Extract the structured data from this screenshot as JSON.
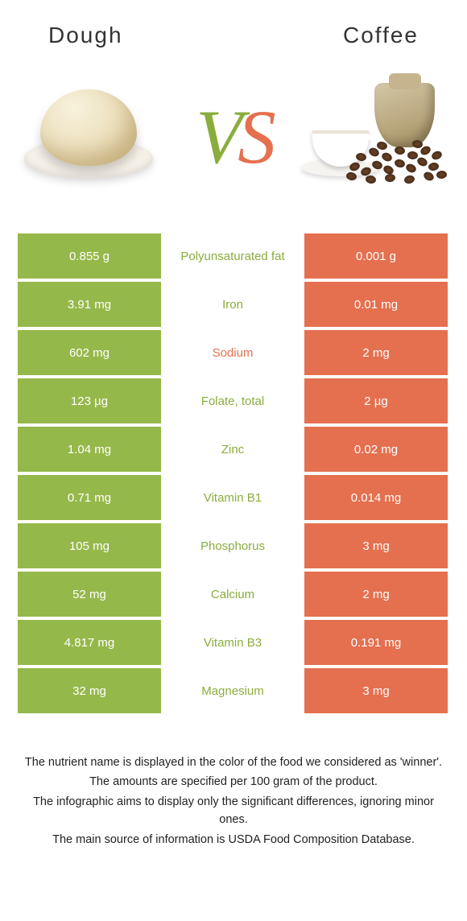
{
  "colors": {
    "left_bg": "#95b84a",
    "right_bg": "#e4704f",
    "left_text": "#8aad3e",
    "right_text": "#e4704f",
    "white": "#ffffff"
  },
  "header": {
    "left_title": "Dough",
    "right_title": "Coffee"
  },
  "vs": {
    "v": "V",
    "s": "S"
  },
  "rows": [
    {
      "left": "0.855 g",
      "label": "Polyunsaturated fat",
      "right": "0.001 g",
      "winner": "left"
    },
    {
      "left": "3.91 mg",
      "label": "Iron",
      "right": "0.01 mg",
      "winner": "left"
    },
    {
      "left": "602 mg",
      "label": "Sodium",
      "right": "2 mg",
      "winner": "right"
    },
    {
      "left": "123 µg",
      "label": "Folate, total",
      "right": "2 µg",
      "winner": "left"
    },
    {
      "left": "1.04 mg",
      "label": "Zinc",
      "right": "0.02 mg",
      "winner": "left"
    },
    {
      "left": "0.71 mg",
      "label": "Vitamin B1",
      "right": "0.014 mg",
      "winner": "left"
    },
    {
      "left": "105 mg",
      "label": "Phosphorus",
      "right": "3 mg",
      "winner": "left"
    },
    {
      "left": "52 mg",
      "label": "Calcium",
      "right": "2 mg",
      "winner": "left"
    },
    {
      "left": "4.817 mg",
      "label": "Vitamin B3",
      "right": "0.191 mg",
      "winner": "left"
    },
    {
      "left": "32 mg",
      "label": "Magnesium",
      "right": "3 mg",
      "winner": "left"
    }
  ],
  "footer": {
    "l1": "The nutrient name is displayed in the color of the food we considered as 'winner'.",
    "l2": "The amounts are specified per 100 gram of the product.",
    "l3": "The infographic aims to display only the significant differences, ignoring minor ones.",
    "l4": "The main source of information is USDA Food Composition Database."
  }
}
